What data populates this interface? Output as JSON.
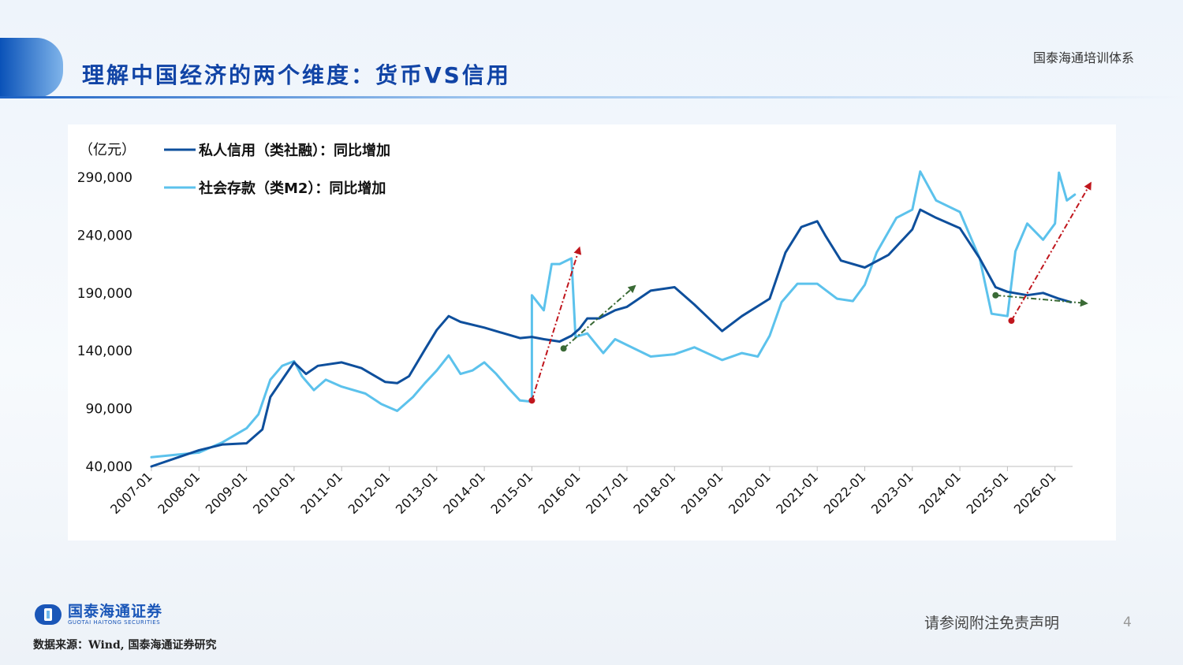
{
  "header": {
    "title": "理解中国经济的两个维度：货币VS信用",
    "brand": "国泰海通培训体系"
  },
  "colors": {
    "private_credit": "#0e4f9c",
    "social_deposit": "#5cc2ec",
    "red_arrow": "#c0161d",
    "green_arrow": "#3a6a35"
  },
  "chart_data": {
    "type": "line",
    "unit_label": "（亿元）",
    "xlabel": "",
    "ylabel": "",
    "ylim": [
      40000,
      290000
    ],
    "yticks": [
      "290,000",
      "240,000",
      "190,000",
      "140,000",
      "90,000",
      "40,000"
    ],
    "x_tick_labels": [
      "2007-01",
      "2008-01",
      "2009-01",
      "2010-01",
      "2011-01",
      "2012-01",
      "2013-01",
      "2014-01",
      "2015-01",
      "2016-01",
      "2017-01",
      "2018-01",
      "2019-01",
      "2020-01",
      "2021-01",
      "2022-01",
      "2023-01",
      "2024-01",
      "2025-01",
      "2026-01"
    ],
    "legend_placement": "top-left",
    "grid": false,
    "series": [
      {
        "name": "私人信用（类社融）：同比增加",
        "color": "#0e4f9c",
        "points": [
          [
            "2007-01",
            40000
          ],
          [
            "2007-07",
            47000
          ],
          [
            "2008-01",
            54000
          ],
          [
            "2008-07",
            59000
          ],
          [
            "2009-01",
            60000
          ],
          [
            "2009-05",
            72000
          ],
          [
            "2009-07",
            100000
          ],
          [
            "2010-01",
            130000
          ],
          [
            "2010-04",
            120000
          ],
          [
            "2010-07",
            127000
          ],
          [
            "2011-01",
            130000
          ],
          [
            "2011-06",
            125000
          ],
          [
            "2011-12",
            113000
          ],
          [
            "2012-03",
            112000
          ],
          [
            "2012-06",
            118000
          ],
          [
            "2012-10",
            141000
          ],
          [
            "2013-01",
            158000
          ],
          [
            "2013-04",
            170000
          ],
          [
            "2013-07",
            165000
          ],
          [
            "2014-01",
            160000
          ],
          [
            "2014-06",
            155000
          ],
          [
            "2014-10",
            151000
          ],
          [
            "2015-01",
            152000
          ],
          [
            "2015-04",
            150000
          ],
          [
            "2015-08",
            148000
          ],
          [
            "2015-11",
            153000
          ],
          [
            "2016-01",
            159000
          ],
          [
            "2016-03",
            168000
          ],
          [
            "2016-06",
            168000
          ],
          [
            "2016-10",
            175000
          ],
          [
            "2017-01",
            178000
          ],
          [
            "2017-07",
            192000
          ],
          [
            "2018-01",
            195000
          ],
          [
            "2018-06",
            180000
          ],
          [
            "2019-01",
            157000
          ],
          [
            "2019-06",
            170000
          ],
          [
            "2020-01",
            185000
          ],
          [
            "2020-05",
            225000
          ],
          [
            "2020-09",
            247000
          ],
          [
            "2021-01",
            252000
          ],
          [
            "2021-03",
            240000
          ],
          [
            "2021-07",
            218000
          ],
          [
            "2022-01",
            212000
          ],
          [
            "2022-07",
            223000
          ],
          [
            "2023-01",
            245000
          ],
          [
            "2023-03",
            262000
          ],
          [
            "2023-07",
            255000
          ],
          [
            "2024-01",
            246000
          ],
          [
            "2024-06",
            220000
          ],
          [
            "2024-10",
            195000
          ],
          [
            "2025-01",
            191000
          ],
          [
            "2025-06",
            188000
          ],
          [
            "2025-10",
            190000
          ],
          [
            "2026-02",
            185000
          ],
          [
            "2026-05",
            182000
          ]
        ]
      },
      {
        "name": "社会存款（类M2）：同比增加",
        "color": "#5cc2ec",
        "points": [
          [
            "2007-01",
            48000
          ],
          [
            "2007-07",
            50000
          ],
          [
            "2008-01",
            52000
          ],
          [
            "2008-07",
            61000
          ],
          [
            "2009-01",
            73000
          ],
          [
            "2009-04",
            85000
          ],
          [
            "2009-07",
            115000
          ],
          [
            "2009-10",
            127000
          ],
          [
            "2010-01",
            131000
          ],
          [
            "2010-03",
            118000
          ],
          [
            "2010-06",
            106000
          ],
          [
            "2010-09",
            115000
          ],
          [
            "2011-01",
            109000
          ],
          [
            "2011-07",
            103000
          ],
          [
            "2011-11",
            94000
          ],
          [
            "2012-03",
            88000
          ],
          [
            "2012-07",
            100000
          ],
          [
            "2012-10",
            112000
          ],
          [
            "2013-01",
            123000
          ],
          [
            "2013-04",
            136000
          ],
          [
            "2013-07",
            120000
          ],
          [
            "2013-10",
            123000
          ],
          [
            "2014-01",
            130000
          ],
          [
            "2014-04",
            120000
          ],
          [
            "2014-07",
            108000
          ],
          [
            "2014-10",
            97000
          ],
          [
            "2015-01",
            96000
          ],
          [
            "2015-01",
            188000
          ],
          [
            "2015-04",
            175000
          ],
          [
            "2015-06",
            215000
          ],
          [
            "2015-08",
            215000
          ],
          [
            "2015-11",
            220000
          ],
          [
            "2015-12",
            152000
          ],
          [
            "2016-03",
            155000
          ],
          [
            "2016-07",
            138000
          ],
          [
            "2016-10",
            150000
          ],
          [
            "2017-01",
            145000
          ],
          [
            "2017-07",
            135000
          ],
          [
            "2018-01",
            137000
          ],
          [
            "2018-06",
            143000
          ],
          [
            "2019-01",
            132000
          ],
          [
            "2019-06",
            138000
          ],
          [
            "2019-10",
            135000
          ],
          [
            "2020-01",
            153000
          ],
          [
            "2020-04",
            182000
          ],
          [
            "2020-08",
            198000
          ],
          [
            "2021-01",
            198000
          ],
          [
            "2021-06",
            185000
          ],
          [
            "2021-10",
            183000
          ],
          [
            "2022-01",
            197000
          ],
          [
            "2022-04",
            225000
          ],
          [
            "2022-09",
            255000
          ],
          [
            "2023-01",
            262000
          ],
          [
            "2023-03",
            295000
          ],
          [
            "2023-07",
            270000
          ],
          [
            "2024-01",
            260000
          ],
          [
            "2024-06",
            220000
          ],
          [
            "2024-09",
            172000
          ],
          [
            "2025-01",
            170000
          ],
          [
            "2025-03",
            226000
          ],
          [
            "2025-06",
            250000
          ],
          [
            "2025-10",
            236000
          ],
          [
            "2026-01",
            250000
          ],
          [
            "2026-02",
            294000
          ],
          [
            "2026-04",
            270000
          ],
          [
            "2026-06",
            275000
          ]
        ]
      }
    ],
    "annotations": [
      {
        "type": "arrow",
        "color": "red",
        "from": [
          "2015-01",
          97000
        ],
        "to": [
          "2016-01",
          229000
        ]
      },
      {
        "type": "arrow",
        "color": "green",
        "from": [
          "2015-09",
          142000
        ],
        "to": [
          "2017-03",
          196000
        ]
      },
      {
        "type": "arrow",
        "color": "green",
        "from": [
          "2024-10",
          188000
        ],
        "to": [
          "2026-09",
          181000
        ]
      },
      {
        "type": "arrow",
        "color": "red",
        "from": [
          "2025-02",
          166000
        ],
        "to": [
          "2026-10",
          285000
        ]
      }
    ]
  },
  "footer": {
    "logo_cn": "国泰海通证券",
    "logo_en": "GUOTAI HAITONG SECURITIES",
    "source": "数据来源：Wind, 国泰海通证券研究",
    "disclaimer": "请参阅附注免责声明",
    "page": "4"
  }
}
